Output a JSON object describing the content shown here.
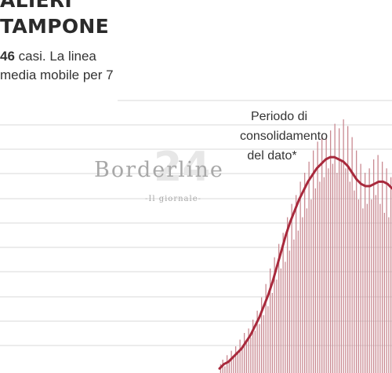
{
  "header": {
    "title_line1": "ALIERI",
    "title_line2": "TAMPONE",
    "subtitle_bold": "46",
    "subtitle_rest": " casi. La linea",
    "subtitle_line2": "media mobile per 7"
  },
  "watermark": {
    "name": "Borderline",
    "tagline": "-Il giornale-",
    "number": "24"
  },
  "annotation": {
    "lines": [
      "Periodo di",
      "consolidamento",
      "del dato*"
    ]
  },
  "colors": {
    "bar": "#c98a92",
    "line": "#a8293c",
    "grid": "#d9d9d9"
  },
  "chart_data": {
    "type": "bar",
    "series": [
      {
        "kind": "bar",
        "values": [
          4,
          6,
          3,
          8,
          5,
          10,
          7,
          12,
          9,
          15,
          11,
          18,
          14,
          20,
          16,
          24,
          19,
          28,
          22,
          34,
          26,
          40,
          30,
          47,
          36,
          52,
          42,
          58,
          47,
          63,
          50,
          70,
          55,
          76,
          60,
          80,
          64,
          86,
          70,
          90,
          74,
          95,
          78,
          100,
          83,
          104,
          86,
          107,
          88,
          106,
          92,
          109,
          94,
          112,
          90,
          110,
          96,
          114,
          92,
          111,
          86,
          106,
          82,
          100,
          78,
          94,
          74,
          90,
          76,
          92,
          78,
          96,
          80,
          98,
          76,
          95,
          72,
          92,
          70,
          88
        ]
      },
      {
        "kind": "moving-average",
        "values": [
          2,
          4,
          5,
          7,
          9,
          11,
          14,
          17,
          21,
          25,
          30,
          35,
          41,
          48,
          55,
          62,
          68,
          73,
          78,
          82,
          86,
          89,
          92,
          94,
          96,
          97,
          97,
          96,
          95,
          93,
          90,
          87,
          85,
          84,
          84,
          85,
          86,
          86,
          85,
          83
        ]
      }
    ],
    "grid": true
  }
}
